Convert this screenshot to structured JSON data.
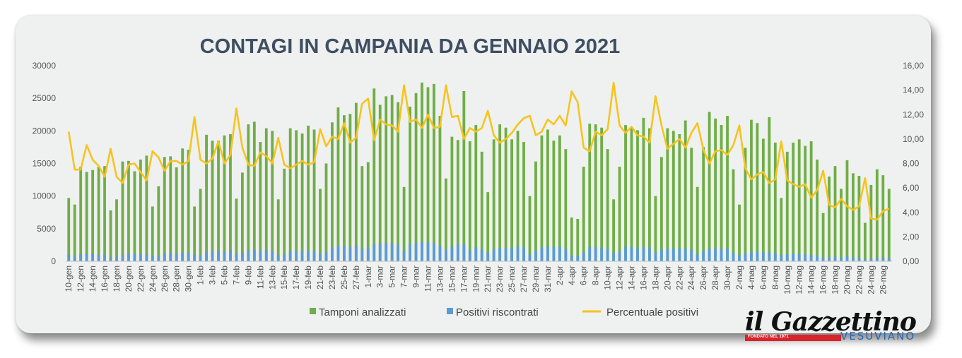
{
  "chart_data": {
    "type": "bar",
    "title": "CONTAGI IN CAMPANIA DA GENNAIO 2021",
    "x": [
      "10-gen",
      "11-gen",
      "12-gen",
      "13-gen",
      "14-gen",
      "15-gen",
      "16-gen",
      "17-gen",
      "18-gen",
      "19-gen",
      "20-gen",
      "21-gen",
      "22-gen",
      "23-gen",
      "24-gen",
      "25-gen",
      "26-gen",
      "27-gen",
      "28-gen",
      "29-gen",
      "30-gen",
      "31-gen",
      "1-feb",
      "2-feb",
      "3-feb",
      "4-feb",
      "5-feb",
      "6-feb",
      "7-feb",
      "8-feb",
      "9-feb",
      "10-feb",
      "11-feb",
      "12-feb",
      "13-feb",
      "14-feb",
      "15-feb",
      "16-feb",
      "17-feb",
      "18-feb",
      "19-feb",
      "20-feb",
      "21-feb",
      "22-feb",
      "23-feb",
      "24-feb",
      "25-feb",
      "26-feb",
      "27-feb",
      "28-feb",
      "1-mar",
      "2-mar",
      "3-mar",
      "4-mar",
      "5-mar",
      "6-mar",
      "7-mar",
      "8-mar",
      "9-mar",
      "10-mar",
      "11-mar",
      "12-mar",
      "13-mar",
      "14-mar",
      "15-mar",
      "16-mar",
      "17-mar",
      "18-mar",
      "19-mar",
      "20-mar",
      "21-mar",
      "22-mar",
      "23-mar",
      "24-mar",
      "25-mar",
      "26-mar",
      "27-mar",
      "28-mar",
      "29-mar",
      "30-mar",
      "31-mar",
      "1-apr",
      "2-apr",
      "3-apr",
      "4-apr",
      "5-apr",
      "6-apr",
      "7-apr",
      "8-apr",
      "9-apr",
      "10-apr",
      "11-apr",
      "12-apr",
      "13-apr",
      "14-apr",
      "15-apr",
      "16-apr",
      "17-apr",
      "18-apr",
      "19-apr",
      "20-apr",
      "21-apr",
      "22-apr",
      "23-apr",
      "24-apr",
      "25-apr",
      "26-apr",
      "27-apr",
      "28-apr",
      "29-apr",
      "30-apr",
      "1-mag",
      "2-mag",
      "3-mag",
      "4-mag",
      "5-mag",
      "6-mag",
      "7-mag",
      "8-mag",
      "9-mag",
      "10-mag",
      "11-mag",
      "12-mag",
      "13-mag",
      "14-mag",
      "15-mag",
      "16-mag",
      "17-mag",
      "18-mag",
      "19-mag",
      "20-mag",
      "21-mag",
      "22-mag",
      "23-mag",
      "24-mag",
      "25-mag",
      "26-mag",
      "27-mag"
    ],
    "xtick_labels": [
      "10-gen",
      "12-gen",
      "14-gen",
      "16-gen",
      "18-gen",
      "20-gen",
      "22-gen",
      "24-gen",
      "26-gen",
      "28-gen",
      "30-gen",
      "1-feb",
      "3-feb",
      "5-feb",
      "7-feb",
      "9-feb",
      "11-feb",
      "13-feb",
      "15-feb",
      "17-feb",
      "19-feb",
      "21-feb",
      "23-feb",
      "25-feb",
      "27-feb",
      "1-mar",
      "3-mar",
      "5-mar",
      "7-mar",
      "9-mar",
      "11-mar",
      "13-mar",
      "15-mar",
      "17-mar",
      "19-mar",
      "21-mar",
      "23-mar",
      "25-mar",
      "27-mar",
      "29-mar",
      "31-mar",
      "2-apr",
      "4-apr",
      "6-apr",
      "8-apr",
      "10-apr",
      "12-apr",
      "14-apr",
      "16-apr",
      "18-apr",
      "20-apr",
      "22-apr",
      "24-apr",
      "26-apr",
      "28-apr",
      "30-apr",
      "2-mag",
      "4-mag",
      "6-mag",
      "8-mag",
      "10-mag",
      "12-mag",
      "14-mag",
      "16-mag",
      "18-mag",
      "20-mag",
      "22-mag",
      "24-mag",
      "26-mag"
    ],
    "series": [
      {
        "name": "Tamponi analizzati",
        "axis": "left",
        "type": "bar",
        "color": "#70ad47",
        "values": [
          9700,
          8700,
          14500,
          13700,
          14000,
          14500,
          14600,
          7800,
          9500,
          15300,
          15400,
          13800,
          15600,
          16200,
          8400,
          11500,
          16000,
          16100,
          14400,
          17300,
          17100,
          8400,
          11100,
          19400,
          18500,
          18500,
          19300,
          19500,
          9600,
          13600,
          21000,
          21400,
          18300,
          20400,
          20000,
          9500,
          14200,
          20400,
          20100,
          19600,
          20800,
          20200,
          11100,
          15000,
          21300,
          23600,
          22400,
          22600,
          24300,
          14600,
          15200,
          26500,
          24000,
          25300,
          25500,
          24400,
          11400,
          23700,
          25800,
          27400,
          26700,
          27200,
          22300,
          12700,
          19100,
          18600,
          26100,
          18400,
          20900,
          16800,
          10600,
          18700,
          21000,
          20500,
          18700,
          20000,
          18300,
          10000,
          15300,
          19300,
          20200,
          18500,
          19300,
          17200,
          6700,
          6500,
          14500,
          21100,
          21000,
          20500,
          17200,
          9500,
          14500,
          20900,
          20500,
          20100,
          22000,
          20400,
          10000,
          16000,
          20400,
          20000,
          19500,
          21600,
          17400,
          11400,
          17500,
          22900,
          21900,
          20900,
          22300,
          14100,
          8700,
          17400,
          21700,
          21200,
          18800,
          22100,
          18200,
          9700,
          16800,
          18200,
          18700,
          17700,
          18400,
          15600,
          7400,
          13000,
          14600,
          11100,
          15500,
          13500,
          13100,
          5900,
          11700,
          14100,
          13200,
          11100
        ]
      },
      {
        "name": "Positivi riscontrati",
        "axis": "left",
        "type": "bar",
        "color": "#5b9bd5",
        "values": [
          1030,
          650,
          1100,
          1150,
          1100,
          1000,
          1000,
          550,
          650,
          1000,
          1200,
          1100,
          1050,
          1050,
          750,
          900,
          1150,
          1250,
          1150,
          1350,
          1350,
          1000,
          900,
          1500,
          1550,
          1600,
          1500,
          1750,
          1150,
          1300,
          1650,
          1750,
          1600,
          1750,
          1600,
          950,
          1100,
          1550,
          1600,
          1600,
          1650,
          1600,
          1150,
          1400,
          2100,
          2350,
          2450,
          2150,
          2450,
          1950,
          2000,
          2600,
          2750,
          2800,
          2800,
          2550,
          1600,
          2700,
          2750,
          3000,
          2900,
          2800,
          2400,
          1750,
          2250,
          2650,
          2650,
          1700,
          2150,
          1800,
          1300,
          1850,
          2050,
          2000,
          2050,
          2300,
          2150,
          1050,
          1550,
          2150,
          2250,
          2150,
          2300,
          1900,
          950,
          850,
          1350,
          2200,
          2200,
          2100,
          1850,
          1350,
          1500,
          2200,
          2200,
          2000,
          2150,
          2100,
          1350,
          1800,
          1900,
          1950,
          1950,
          1950,
          1750,
          1050,
          1550,
          1900,
          2000,
          1850,
          1950,
          1300,
          950,
          1150,
          1450,
          1500,
          1350,
          1400,
          1200,
          950,
          1100,
          1150,
          1100,
          1050,
          950,
          900,
          550,
          600,
          700,
          550,
          800,
          550,
          550,
          300,
          400,
          550,
          550,
          480
        ]
      },
      {
        "name": "Percentuale positivi",
        "axis": "right",
        "type": "line",
        "color": "#f7c31e",
        "values": [
          10.6,
          7.5,
          7.5,
          9.5,
          8.3,
          7.8,
          6.9,
          9.2,
          6.9,
          6.4,
          7.9,
          8.0,
          7.3,
          6.6,
          9.0,
          8.5,
          7.4,
          8.2,
          8.2,
          7.9,
          8.2,
          11.8,
          8.3,
          8.0,
          8.4,
          9.8,
          8.0,
          8.7,
          12.5,
          9.3,
          7.9,
          7.8,
          8.9,
          8.6,
          8.0,
          10.1,
          7.9,
          7.6,
          7.9,
          8.2,
          7.9,
          8.1,
          10.8,
          9.4,
          10.2,
          10.0,
          11.3,
          9.7,
          10.1,
          12.9,
          13.3,
          9.9,
          11.6,
          11.2,
          11.1,
          10.6,
          14.4,
          11.4,
          11.6,
          10.9,
          12.0,
          10.9,
          11.0,
          14.4,
          11.8,
          11.9,
          10.0,
          10.9,
          10.6,
          10.9,
          12.3,
          10.3,
          9.7,
          10.0,
          10.5,
          11.2,
          11.7,
          11.9,
          10.3,
          10.6,
          11.6,
          11.2,
          11.9,
          11.1,
          13.9,
          13.0,
          9.3,
          9.0,
          10.6,
          10.3,
          10.8,
          14.6,
          11.1,
          10.5,
          11.0,
          10.3,
          10.2,
          9.7,
          13.5,
          11.1,
          9.2,
          9.6,
          10.0,
          9.3,
          10.5,
          11.3,
          9.1,
          8.0,
          9.0,
          9.1,
          8.7,
          9.5,
          11.1,
          7.6,
          6.7,
          7.1,
          7.3,
          6.4,
          6.7,
          9.8,
          6.6,
          6.3,
          6.1,
          6.3,
          5.2,
          5.8,
          7.4,
          4.6,
          4.4,
          5.1,
          4.5,
          4.2,
          4.5,
          6.8,
          3.5,
          3.4,
          4.1,
          4.3
        ]
      }
    ],
    "y_left": {
      "ylim": [
        0,
        30000
      ],
      "ticks": [
        "0",
        "5000",
        "10000",
        "15000",
        "20000",
        "25000",
        "30000"
      ]
    },
    "y_right": {
      "ylim": [
        0,
        16
      ],
      "ticks": [
        "0,00",
        "2,00",
        "4,00",
        "6,00",
        "8,00",
        "10,00",
        "12,00",
        "14,00",
        "16,00"
      ]
    },
    "grid": false,
    "legend_position": "bottom"
  },
  "logo": {
    "main": "il Gazzettino",
    "founded": "FONDATO NEL 1971",
    "sub": "VESUVIANO"
  }
}
